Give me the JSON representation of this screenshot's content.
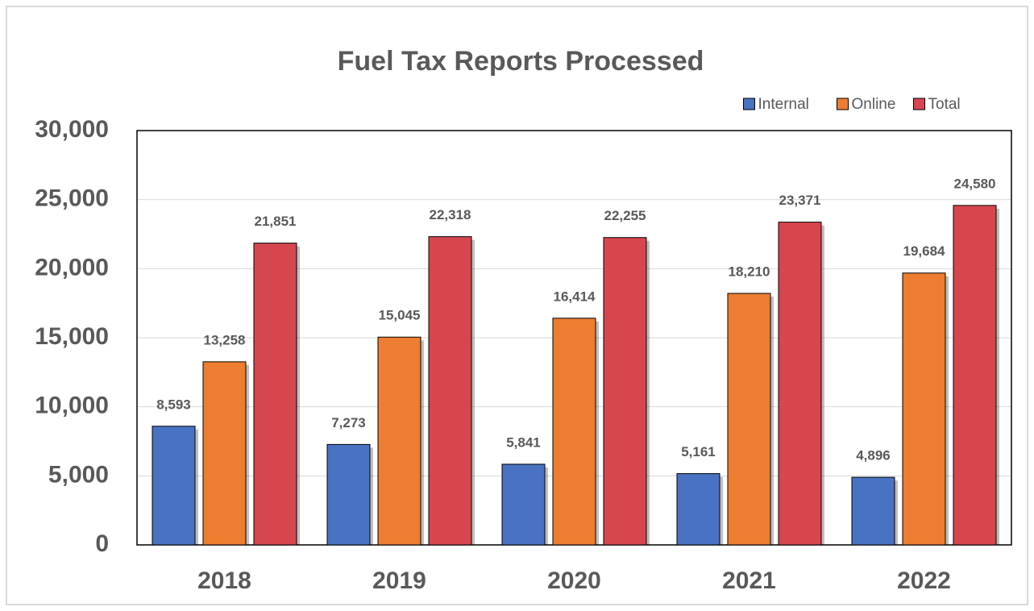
{
  "chart_data": {
    "type": "bar",
    "title": "Fuel Tax Reports Processed",
    "categories": [
      "2018",
      "2019",
      "2020",
      "2021",
      "2022"
    ],
    "series": [
      {
        "name": "Internal",
        "color": "#4a72c2",
        "values": [
          8593,
          7273,
          5841,
          5161,
          4896
        ],
        "value_labels": [
          "8,593",
          "7,273",
          "5,841",
          "5,161",
          "4,896"
        ]
      },
      {
        "name": "Online",
        "color": "#ed7d31",
        "values": [
          13258,
          15045,
          16414,
          18210,
          19684
        ],
        "value_labels": [
          "13,258",
          "15,045",
          "16,414",
          "18,210",
          "19,684"
        ]
      },
      {
        "name": "Total",
        "color": "#d6464f",
        "values": [
          21851,
          22318,
          22255,
          23371,
          24580
        ],
        "value_labels": [
          "21,851",
          "22,318",
          "22,255",
          "23,371",
          "24,580"
        ]
      }
    ],
    "ylim": [
      0,
      30000
    ],
    "yticks": [
      0,
      {
        "value": 5000,
        "label": "5,000"
      },
      {
        "value": 10000,
        "label": "10,000"
      },
      {
        "value": 15000,
        "label": "15,000"
      },
      {
        "value": 20000,
        "label": "20,000"
      },
      {
        "value": 25000,
        "label": "25,000"
      },
      {
        "value": 30000,
        "label": "30,000"
      }
    ],
    "grid": true,
    "legend": "top-right"
  }
}
